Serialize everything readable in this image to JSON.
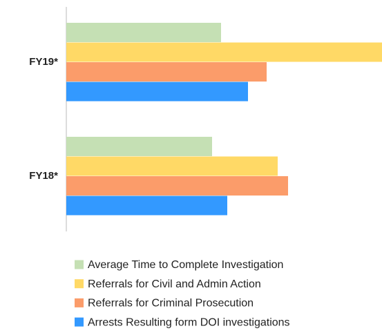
{
  "chart_data": {
    "type": "bar",
    "orientation": "horizontal",
    "categories": [
      "FY19*",
      "FY18*"
    ],
    "series": [
      {
        "name": "Average Time to Complete Investigation",
        "color": "#c5e0b4",
        "values": [
          224,
          211
        ]
      },
      {
        "name": "Referrals for Civil and Admin Action",
        "color": "#ffd966",
        "values": [
          457,
          306
        ]
      },
      {
        "name": "Referrals for Criminal Prosecution",
        "color": "#fb9c6a",
        "values": [
          290,
          321
        ]
      },
      {
        "name": "Arrests Resulting form DOI investigations",
        "color": "#3399ff",
        "values": [
          263,
          233
        ]
      }
    ]
  }
}
